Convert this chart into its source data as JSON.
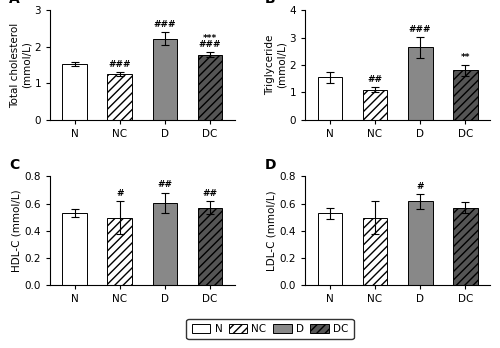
{
  "panels": [
    {
      "label": "A",
      "ylabel": "Total cholesterol\n(mmol/L)",
      "ylim": [
        0,
        3.0
      ],
      "yticks": [
        0,
        1,
        2,
        3
      ],
      "categories": [
        "N",
        "NC",
        "D",
        "DC"
      ],
      "values": [
        1.52,
        1.25,
        2.22,
        1.78
      ],
      "errors": [
        0.06,
        0.06,
        0.18,
        0.07
      ],
      "annotations": [
        "",
        "###",
        "###",
        "***\n###"
      ]
    },
    {
      "label": "B",
      "ylabel": "Triglyceride\n(mmol/L)",
      "ylim": [
        0,
        4.0
      ],
      "yticks": [
        0,
        1,
        2,
        3,
        4
      ],
      "categories": [
        "N",
        "NC",
        "D",
        "DC"
      ],
      "values": [
        1.55,
        1.1,
        2.65,
        1.8
      ],
      "errors": [
        0.2,
        0.08,
        0.38,
        0.2
      ],
      "annotations": [
        "",
        "##",
        "###",
        "**"
      ]
    },
    {
      "label": "C",
      "ylabel": "HDL-C (mmol/L)",
      "ylim": [
        0,
        0.8
      ],
      "yticks": [
        0.0,
        0.2,
        0.4,
        0.6,
        0.8
      ],
      "categories": [
        "N",
        "NC",
        "D",
        "DC"
      ],
      "values": [
        0.53,
        0.495,
        0.605,
        0.57
      ],
      "errors": [
        0.03,
        0.12,
        0.075,
        0.045
      ],
      "annotations": [
        "",
        "#",
        "##",
        "##"
      ]
    },
    {
      "label": "D",
      "ylabel": "LDL-C (mmol/L)",
      "ylim": [
        0,
        0.8
      ],
      "yticks": [
        0.0,
        0.2,
        0.4,
        0.6,
        0.8
      ],
      "categories": [
        "N",
        "NC",
        "D",
        "DC"
      ],
      "values": [
        0.53,
        0.495,
        0.615,
        0.57
      ],
      "errors": [
        0.04,
        0.12,
        0.055,
        0.04
      ],
      "annotations": [
        "",
        "",
        "#",
        ""
      ]
    }
  ],
  "bar_styles": [
    {
      "facecolor": "white",
      "edgecolor": "black",
      "hatch": ""
    },
    {
      "facecolor": "white",
      "edgecolor": "black",
      "hatch": "////"
    },
    {
      "facecolor": "#888888",
      "edgecolor": "black",
      "hatch": ""
    },
    {
      "facecolor": "#555555",
      "edgecolor": "black",
      "hatch": "////"
    }
  ],
  "legend_labels": [
    "N",
    "NC",
    "D",
    "DC"
  ],
  "bar_width": 0.55,
  "capsize": 3,
  "annotation_fontsize": 6.5,
  "label_fontsize": 7.5,
  "tick_fontsize": 7.5,
  "legend_fontsize": 7.5,
  "panel_label_fontsize": 10,
  "background_color": "#ffffff"
}
